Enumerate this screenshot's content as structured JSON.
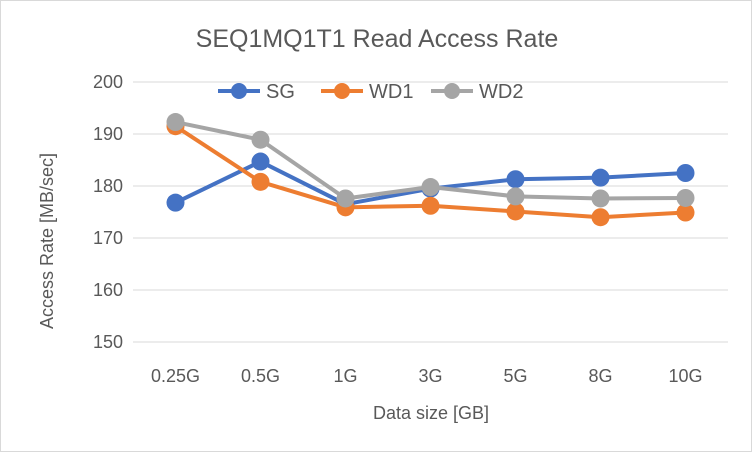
{
  "chart_data": {
    "type": "line",
    "title": "SEQ1MQ1T1 Read Access Rate",
    "xlabel": "Data size [GB]",
    "ylabel": "Access Rate [MB/sec]",
    "categories": [
      "0.25G",
      "0.5G",
      "1G",
      "3G",
      "5G",
      "8G",
      "10G"
    ],
    "ylim": [
      150,
      200
    ],
    "yticks": [
      150,
      160,
      170,
      180,
      190,
      200
    ],
    "grid": true,
    "legend_position": "top",
    "series": [
      {
        "name": "SG",
        "color": "#4472c4",
        "values": [
          176.8,
          184.7,
          176.5,
          179.5,
          181.3,
          181.6,
          182.5
        ]
      },
      {
        "name": "WD1",
        "color": "#ed7d31",
        "values": [
          191.5,
          180.8,
          175.9,
          176.2,
          175.1,
          174.0,
          174.9
        ]
      },
      {
        "name": "WD2",
        "color": "#a5a5a5",
        "values": [
          192.3,
          188.9,
          177.6,
          179.8,
          178.0,
          177.6,
          177.7
        ]
      }
    ]
  }
}
